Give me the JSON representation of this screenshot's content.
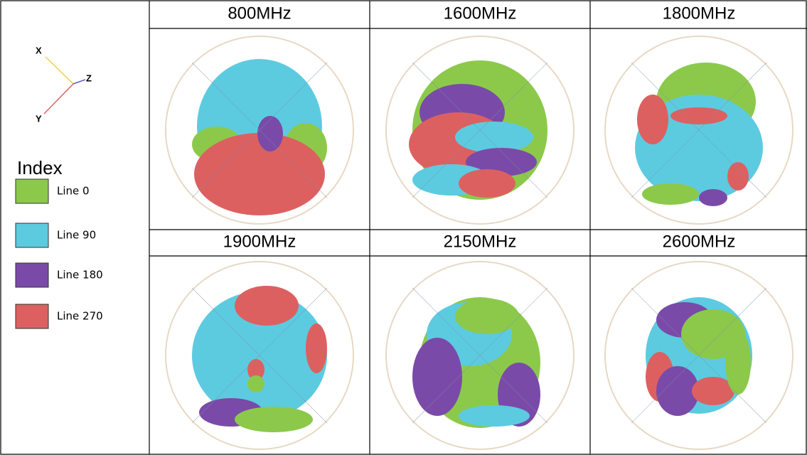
{
  "axes": {
    "x": "X",
    "y": "Y",
    "z": "Z"
  },
  "legend": {
    "title": "Index",
    "items": [
      {
        "label": "Line 0",
        "color": "#8cc94b"
      },
      {
        "label": "Line 90",
        "color": "#5ccbe0"
      },
      {
        "label": "Line 180",
        "color": "#7a4aa8"
      },
      {
        "label": "Line 270",
        "color": "#dd6060"
      }
    ]
  },
  "panels": [
    {
      "title": "800MHz"
    },
    {
      "title": "1600MHz"
    },
    {
      "title": "1800MHz"
    },
    {
      "title": "1900MHz"
    },
    {
      "title": "2150MHz"
    },
    {
      "title": "2600MHz"
    }
  ]
}
